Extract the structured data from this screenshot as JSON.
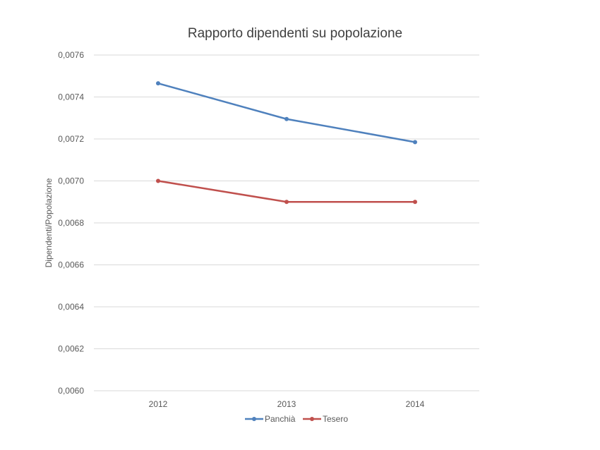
{
  "chart_data": {
    "type": "line",
    "title": "Rapporto dipendenti su popolazione",
    "xlabel": "",
    "ylabel": "Dipendenti/Popolazione",
    "categories": [
      "2012",
      "2013",
      "2014"
    ],
    "ylim": [
      0.006,
      0.0076
    ],
    "yticks": [
      "0,0060",
      "0,0062",
      "0,0064",
      "0,0066",
      "0,0068",
      "0,0070",
      "0,0072",
      "0,0074",
      "0,0076"
    ],
    "grid": true,
    "legend_position": "bottom",
    "series": [
      {
        "name": "Panchià",
        "color": "#4f81bd",
        "values": [
          0.007465,
          0.007295,
          0.007185
        ]
      },
      {
        "name": "Tesero",
        "color": "#c0504d",
        "values": [
          0.007,
          0.0069,
          0.0069
        ]
      }
    ]
  }
}
